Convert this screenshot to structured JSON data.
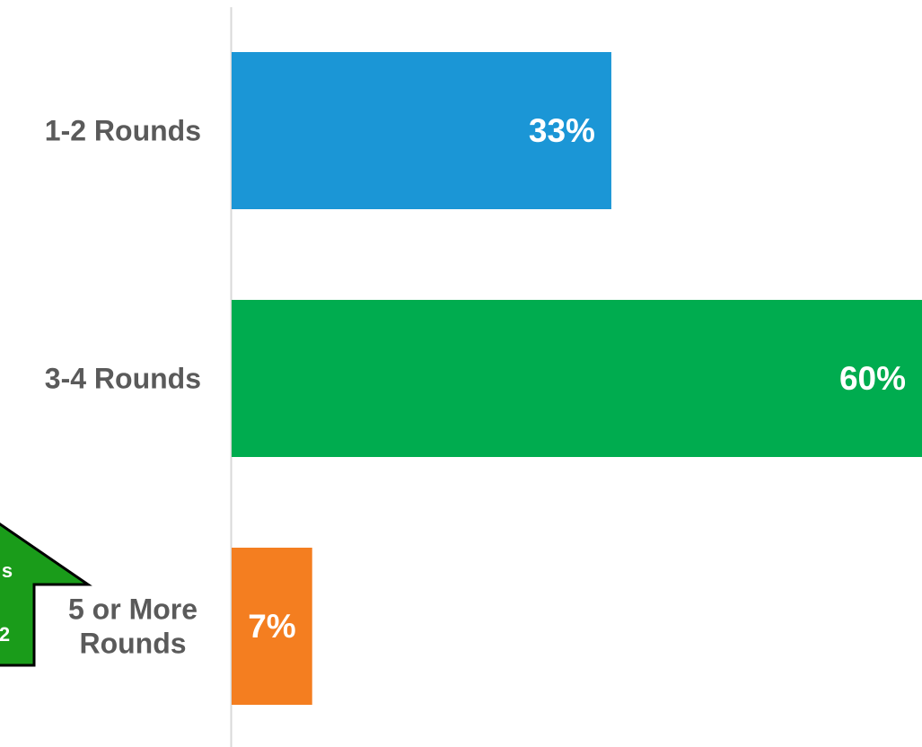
{
  "chart_data": {
    "type": "bar",
    "orientation": "horizontal",
    "categories": [
      "1-2 Rounds",
      "3-4 Rounds",
      "5 or More Rounds"
    ],
    "category_label_lines": [
      [
        "1-2 Rounds"
      ],
      [
        "3-4 Rounds"
      ],
      [
        "5 or More",
        "Rounds"
      ]
    ],
    "values": [
      33,
      60,
      7
    ],
    "value_labels": [
      "33%",
      "60%",
      "7%"
    ],
    "colors": [
      "#1b96d6",
      "#00ac4f",
      "#f47e20"
    ],
    "xlim": [
      0,
      60
    ],
    "grid": false,
    "legend": "none"
  },
  "callout": {
    "lines": [
      "s",
      "2"
    ],
    "color": "#1a9c1a",
    "icon": "up-arrow-icon"
  }
}
